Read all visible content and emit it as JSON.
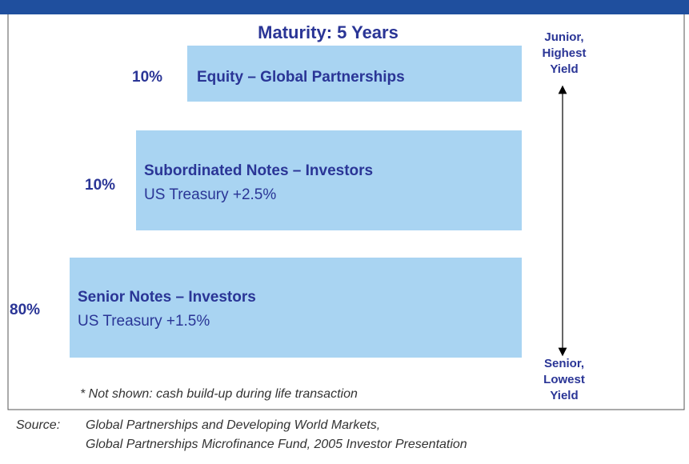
{
  "title": "Maturity: 5 Years",
  "tranches": [
    {
      "percent": "10%",
      "name": "Equity – Global Partnerships"
    },
    {
      "percent": "10%",
      "name": "Subordinated Notes – Investors",
      "detail": "US Treasury +2.5%"
    },
    {
      "percent": "80%",
      "name": "Senior Notes – Investors",
      "detail": "US Treasury +1.5%"
    }
  ],
  "axis": {
    "top_label": [
      "Junior,",
      "Highest",
      "Yield"
    ],
    "bottom_label": [
      "Senior,",
      "Lowest",
      "Yield"
    ]
  },
  "footnote": "* Not shown: cash build-up during life transaction",
  "source": {
    "label": "Source:",
    "lines": [
      "Global Partnerships and Developing World Markets,",
      "Global Partnerships Microfinance Fund, 2005 Investor Presentation"
    ]
  }
}
